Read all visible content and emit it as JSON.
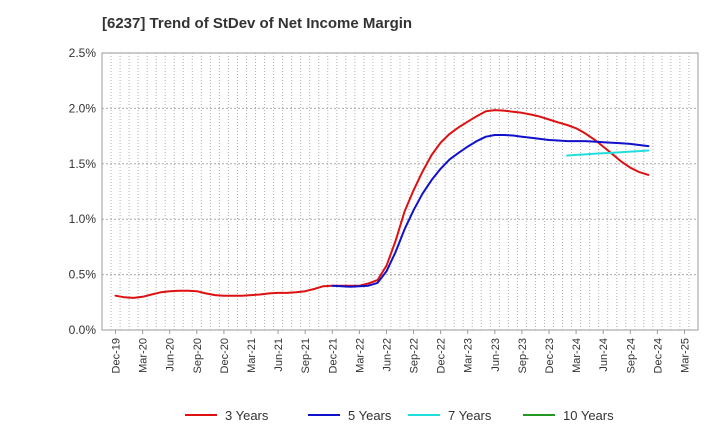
{
  "chart_data": {
    "type": "line",
    "title": "[6237]  Trend of StDev of Net Income Margin",
    "xlabel": "",
    "ylabel": "",
    "ylim": [
      0,
      2.5
    ],
    "yticks": [
      "0.0%",
      "0.5%",
      "1.0%",
      "1.5%",
      "2.0%",
      "2.5%"
    ],
    "categories": [
      "Dec-19",
      "Mar-20",
      "Jun-20",
      "Sep-20",
      "Dec-20",
      "Mar-21",
      "Jun-21",
      "Sep-21",
      "Dec-21",
      "Mar-22",
      "Jun-22",
      "Sep-22",
      "Dec-22",
      "Mar-23",
      "Jun-23",
      "Sep-23",
      "Dec-23",
      "Mar-24",
      "Jun-24",
      "Sep-24",
      "Dec-24",
      "Mar-25"
    ],
    "grid": true,
    "legend_position": "bottom",
    "series": [
      {
        "name": "3 Years",
        "color": "#dd1111",
        "points": [
          [
            0.0,
            0.31
          ],
          [
            0.33,
            0.295
          ],
          [
            0.67,
            0.29
          ],
          [
            1.0,
            0.3
          ],
          [
            1.33,
            0.32
          ],
          [
            1.67,
            0.34
          ],
          [
            2.0,
            0.35
          ],
          [
            2.33,
            0.355
          ],
          [
            2.67,
            0.355
          ],
          [
            3.0,
            0.35
          ],
          [
            3.33,
            0.33
          ],
          [
            3.67,
            0.315
          ],
          [
            4.0,
            0.31
          ],
          [
            4.33,
            0.31
          ],
          [
            4.67,
            0.31
          ],
          [
            5.0,
            0.315
          ],
          [
            5.33,
            0.32
          ],
          [
            5.67,
            0.33
          ],
          [
            6.0,
            0.335
          ],
          [
            6.33,
            0.335
          ],
          [
            6.67,
            0.34
          ],
          [
            7.0,
            0.35
          ],
          [
            7.33,
            0.37
          ],
          [
            7.67,
            0.395
          ],
          [
            8.0,
            0.4
          ],
          [
            8.33,
            0.4
          ],
          [
            8.67,
            0.4
          ],
          [
            9.0,
            0.4
          ],
          [
            9.33,
            0.42
          ],
          [
            9.67,
            0.45
          ],
          [
            10.0,
            0.58
          ],
          [
            10.33,
            0.8
          ],
          [
            10.67,
            1.07
          ],
          [
            11.0,
            1.26
          ],
          [
            11.33,
            1.43
          ],
          [
            11.67,
            1.58
          ],
          [
            12.0,
            1.69
          ],
          [
            12.33,
            1.77
          ],
          [
            12.67,
            1.83
          ],
          [
            13.0,
            1.88
          ],
          [
            13.33,
            1.93
          ],
          [
            13.67,
            1.975
          ],
          [
            14.0,
            1.985
          ],
          [
            14.33,
            1.98
          ],
          [
            14.67,
            1.97
          ],
          [
            15.0,
            1.96
          ],
          [
            15.33,
            1.945
          ],
          [
            15.67,
            1.925
          ],
          [
            16.0,
            1.9
          ],
          [
            16.33,
            1.875
          ],
          [
            16.67,
            1.85
          ],
          [
            17.0,
            1.82
          ],
          [
            17.33,
            1.775
          ],
          [
            17.67,
            1.72
          ],
          [
            18.0,
            1.655
          ],
          [
            18.33,
            1.59
          ],
          [
            18.67,
            1.52
          ],
          [
            19.0,
            1.465
          ],
          [
            19.33,
            1.425
          ],
          [
            19.67,
            1.4
          ]
        ]
      },
      {
        "name": "5 Years",
        "color": "#1111cc",
        "points": [
          [
            8.0,
            0.4
          ],
          [
            8.33,
            0.395
          ],
          [
            8.67,
            0.39
          ],
          [
            9.0,
            0.395
          ],
          [
            9.33,
            0.4
          ],
          [
            9.67,
            0.425
          ],
          [
            10.0,
            0.53
          ],
          [
            10.33,
            0.7
          ],
          [
            10.67,
            0.91
          ],
          [
            11.0,
            1.08
          ],
          [
            11.33,
            1.23
          ],
          [
            11.67,
            1.355
          ],
          [
            12.0,
            1.455
          ],
          [
            12.33,
            1.54
          ],
          [
            12.67,
            1.6
          ],
          [
            13.0,
            1.655
          ],
          [
            13.33,
            1.705
          ],
          [
            13.67,
            1.745
          ],
          [
            14.0,
            1.76
          ],
          [
            14.33,
            1.76
          ],
          [
            14.67,
            1.755
          ],
          [
            15.0,
            1.745
          ],
          [
            15.33,
            1.735
          ],
          [
            15.67,
            1.725
          ],
          [
            16.0,
            1.715
          ],
          [
            16.33,
            1.71
          ],
          [
            16.67,
            1.705
          ],
          [
            17.0,
            1.705
          ],
          [
            17.33,
            1.705
          ],
          [
            17.67,
            1.7
          ],
          [
            18.0,
            1.695
          ],
          [
            18.33,
            1.69
          ],
          [
            18.67,
            1.685
          ],
          [
            19.0,
            1.68
          ],
          [
            19.33,
            1.67
          ],
          [
            19.67,
            1.66
          ]
        ]
      },
      {
        "name": "7 Years",
        "color": "#22dddd",
        "points": [
          [
            16.67,
            1.575
          ],
          [
            17.0,
            1.58
          ],
          [
            17.33,
            1.585
          ],
          [
            17.67,
            1.59
          ],
          [
            18.0,
            1.595
          ],
          [
            18.33,
            1.6
          ],
          [
            18.67,
            1.605
          ],
          [
            19.0,
            1.61
          ],
          [
            19.33,
            1.615
          ],
          [
            19.67,
            1.62
          ]
        ]
      },
      {
        "name": "10 Years",
        "color": "#229922",
        "points": []
      }
    ]
  }
}
